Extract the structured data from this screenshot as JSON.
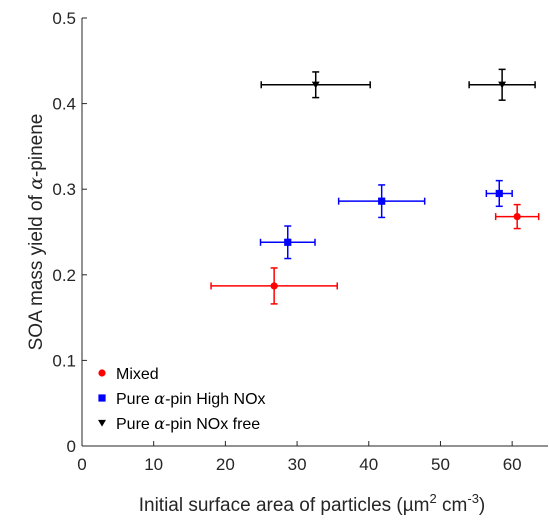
{
  "chart_data": {
    "type": "scatter",
    "title": "",
    "xlabel": "Initial surface area of particles (µm² cm⁻³)",
    "xlabel_parts": {
      "main": "Initial surface area of particles (µm",
      "sup1": "2",
      "mid": " cm",
      "sup2": "-3",
      "end": ")"
    },
    "ylabel": "SOA mass yield of α-pinene",
    "ylabel_parts": {
      "pre": "SOA mass yield of ",
      "greek": "α",
      "post": "-pinene"
    },
    "xlim": [
      0,
      65
    ],
    "ylim": [
      0,
      0.5
    ],
    "xticks": [
      0,
      10,
      20,
      30,
      40,
      50,
      60
    ],
    "yticks": [
      0,
      0.1,
      0.2,
      0.3,
      0.4,
      0.5
    ],
    "xtick_labels": [
      "0",
      "10",
      "20",
      "30",
      "40",
      "50",
      "60"
    ],
    "ytick_labels": [
      "0",
      "0.1",
      "0.2",
      "0.3",
      "0.4",
      "0.5"
    ],
    "grid": false,
    "legend_position": "bottom-left",
    "series": [
      {
        "name": "Mixed",
        "legend_parts": {
          "pre": "Mixed",
          "greek": "",
          "post": ""
        },
        "color": "#ff0000",
        "marker": "circle",
        "points": [
          {
            "x": 26.8,
            "y": 0.187,
            "xerr": 8.8,
            "yerr": 0.021
          },
          {
            "x": 60.7,
            "y": 0.268,
            "xerr": 3.0,
            "yerr": 0.014
          }
        ]
      },
      {
        "name": "Pure α-pin High NOx",
        "legend_parts": {
          "pre": "Pure ",
          "greek": "α",
          "post": "-pin High NOx"
        },
        "color": "#0000ff",
        "marker": "square",
        "points": [
          {
            "x": 28.7,
            "y": 0.238,
            "xerr": 3.8,
            "yerr": 0.019
          },
          {
            "x": 41.8,
            "y": 0.286,
            "xerr": 6.0,
            "yerr": 0.019
          },
          {
            "x": 58.2,
            "y": 0.295,
            "xerr": 1.8,
            "yerr": 0.015
          }
        ]
      },
      {
        "name": "Pure α-pin NOx free",
        "legend_parts": {
          "pre": "Pure ",
          "greek": "α",
          "post": "-pin NOx free"
        },
        "color": "#000000",
        "marker": "triangle-down",
        "points": [
          {
            "x": 32.6,
            "y": 0.422,
            "xerr": 7.6,
            "yerr": 0.015
          },
          {
            "x": 58.6,
            "y": 0.422,
            "xerr": 4.6,
            "yerr": 0.018
          }
        ]
      }
    ]
  }
}
